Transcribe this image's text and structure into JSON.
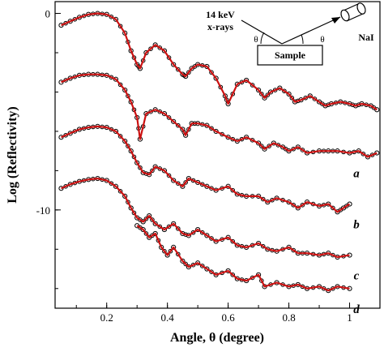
{
  "chart_data": {
    "type": "scatter",
    "xlabel": "Angle, θ (degree)",
    "ylabel": "Log (Reflectivity)",
    "xlim": [
      0.03,
      1.1
    ],
    "ylim": [
      -15.0,
      0.6
    ],
    "xticks": [
      0.2,
      0.4,
      0.6,
      0.8,
      1
    ],
    "xtick_labels": [
      "0.2",
      "0.4",
      "0.6",
      "0.8",
      "1"
    ],
    "yticks": [
      0,
      -10
    ],
    "ytick_labels": [
      "0",
      "-10"
    ],
    "colors": {
      "data": "#000000",
      "fit": "#cc1111",
      "axes": "#000000"
    },
    "inset": {
      "source_label_1": "14 keV",
      "source_label_2": "x-rays",
      "sample_label": "Sample",
      "detector_label": "NaI",
      "angle_symbol": "θ"
    },
    "series": [
      {
        "label": "",
        "x": [
          0.05,
          0.08,
          0.11,
          0.14,
          0.17,
          0.2,
          0.23,
          0.26,
          0.28,
          0.3,
          0.31,
          0.33,
          0.36,
          0.39,
          0.42,
          0.45,
          0.46,
          0.48,
          0.5,
          0.53,
          0.56,
          0.59,
          0.6,
          0.63,
          0.66,
          0.7,
          0.72,
          0.74,
          0.77,
          0.8,
          0.82,
          0.84,
          0.87,
          0.9,
          0.92,
          0.94,
          0.97,
          1.0,
          1.02,
          1.04,
          1.07,
          1.09
        ],
        "y": [
          -0.6,
          -0.4,
          -0.2,
          -0.05,
          0.0,
          -0.05,
          -0.3,
          -1.0,
          -1.9,
          -2.6,
          -2.8,
          -2.0,
          -1.6,
          -1.9,
          -2.6,
          -3.1,
          -3.2,
          -2.8,
          -2.6,
          -2.7,
          -3.3,
          -4.2,
          -4.6,
          -3.6,
          -3.4,
          -3.9,
          -4.3,
          -4.0,
          -3.8,
          -4.1,
          -4.5,
          -4.4,
          -4.2,
          -4.5,
          -4.7,
          -4.6,
          -4.5,
          -4.6,
          -4.7,
          -4.6,
          -4.7,
          -4.9
        ]
      },
      {
        "label": "a",
        "x": [
          0.05,
          0.08,
          0.11,
          0.14,
          0.17,
          0.2,
          0.23,
          0.26,
          0.28,
          0.3,
          0.31,
          0.33,
          0.36,
          0.39,
          0.42,
          0.45,
          0.46,
          0.48,
          0.5,
          0.53,
          0.56,
          0.6,
          0.63,
          0.66,
          0.7,
          0.72,
          0.75,
          0.78,
          0.8,
          0.83,
          0.86,
          0.9,
          0.93,
          0.96,
          1.0,
          1.03,
          1.06,
          1.09
        ],
        "y": [
          -3.5,
          -3.3,
          -3.15,
          -3.1,
          -3.1,
          -3.15,
          -3.35,
          -3.9,
          -4.5,
          -5.3,
          -6.4,
          -5.1,
          -4.9,
          -5.1,
          -5.5,
          -5.9,
          -6.2,
          -5.6,
          -5.6,
          -5.7,
          -6.0,
          -6.3,
          -6.5,
          -6.3,
          -6.6,
          -6.9,
          -6.6,
          -6.8,
          -7.0,
          -6.8,
          -7.1,
          -7.0,
          -7.0,
          -7.0,
          -7.1,
          -7.0,
          -7.3,
          -7.1
        ]
      },
      {
        "label": "b",
        "x": [
          0.05,
          0.08,
          0.11,
          0.14,
          0.17,
          0.2,
          0.23,
          0.26,
          0.28,
          0.3,
          0.32,
          0.34,
          0.36,
          0.39,
          0.42,
          0.45,
          0.47,
          0.5,
          0.53,
          0.56,
          0.6,
          0.63,
          0.66,
          0.7,
          0.73,
          0.76,
          0.8,
          0.83,
          0.86,
          0.9,
          0.93,
          0.96,
          0.98,
          1.0
        ],
        "y": [
          -6.3,
          -6.1,
          -5.9,
          -5.8,
          -5.75,
          -5.8,
          -6.0,
          -6.5,
          -7.0,
          -7.6,
          -8.1,
          -8.2,
          -7.8,
          -8.0,
          -8.5,
          -8.8,
          -8.4,
          -8.6,
          -8.8,
          -9.0,
          -8.8,
          -9.2,
          -9.3,
          -9.3,
          -9.6,
          -9.4,
          -9.6,
          -9.9,
          -9.6,
          -9.8,
          -9.7,
          -10.1,
          -9.9,
          -9.7
        ]
      },
      {
        "label": "c",
        "x": [
          0.05,
          0.08,
          0.11,
          0.14,
          0.17,
          0.2,
          0.23,
          0.26,
          0.28,
          0.3,
          0.32,
          0.34,
          0.36,
          0.39,
          0.42,
          0.45,
          0.47,
          0.5,
          0.53,
          0.56,
          0.6,
          0.63,
          0.66,
          0.7,
          0.73,
          0.76,
          0.8,
          0.83,
          0.86,
          0.9,
          0.93,
          0.96,
          1.0
        ],
        "y": [
          -8.9,
          -8.7,
          -8.55,
          -8.45,
          -8.4,
          -8.5,
          -8.8,
          -9.3,
          -9.9,
          -10.4,
          -10.6,
          -10.3,
          -10.7,
          -11.0,
          -10.7,
          -11.2,
          -11.3,
          -11.0,
          -11.3,
          -11.6,
          -11.4,
          -11.8,
          -11.9,
          -11.7,
          -12.0,
          -12.1,
          -11.9,
          -12.2,
          -12.2,
          -12.3,
          -12.2,
          -12.4,
          -12.3
        ]
      },
      {
        "label": "d",
        "x": [
          0.3,
          0.32,
          0.34,
          0.36,
          0.38,
          0.4,
          0.42,
          0.45,
          0.47,
          0.5,
          0.53,
          0.56,
          0.6,
          0.63,
          0.66,
          0.7,
          0.72,
          0.76,
          0.8,
          0.83,
          0.86,
          0.9,
          0.93,
          0.96,
          1.0
        ],
        "y": [
          -10.8,
          -11.0,
          -11.4,
          -11.2,
          -11.9,
          -12.3,
          -11.9,
          -12.6,
          -12.9,
          -12.7,
          -13.0,
          -13.3,
          -13.1,
          -13.5,
          -13.6,
          -13.3,
          -13.9,
          -13.7,
          -13.9,
          -13.8,
          -14.0,
          -13.9,
          -14.1,
          -13.9,
          -14.0
        ]
      }
    ]
  }
}
